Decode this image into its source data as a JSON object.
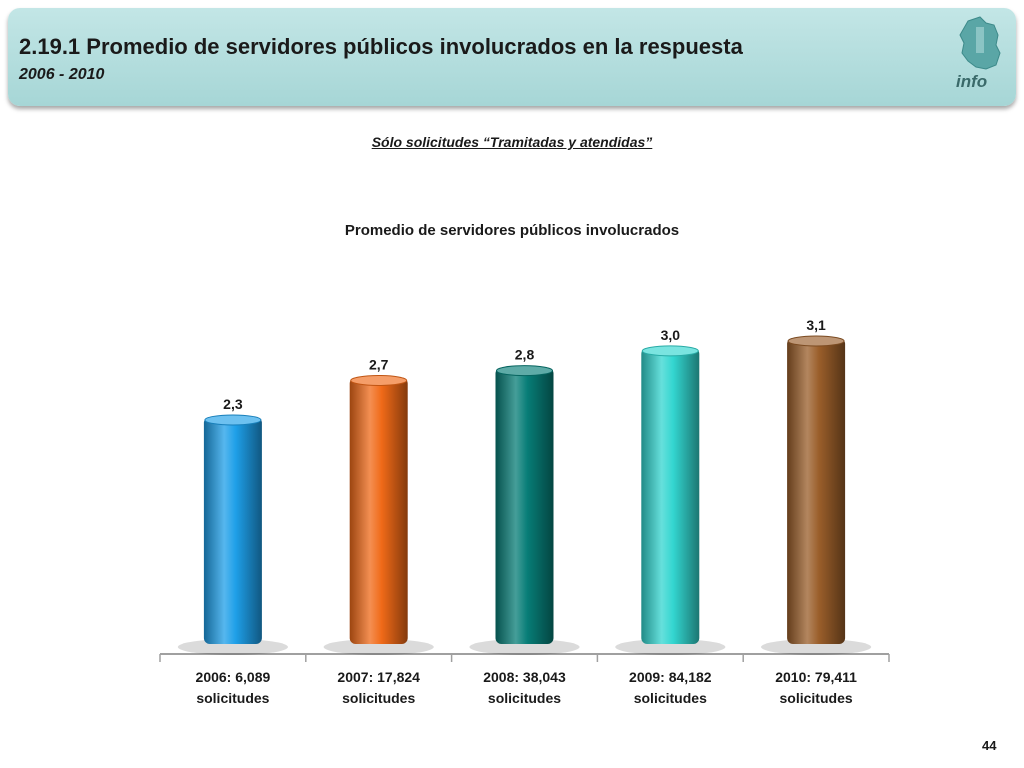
{
  "header": {
    "title": "2.19.1 Promedio de servidores públicos involucrados en la respuesta",
    "subtitle": "2006 - 2010",
    "logo_text": "info"
  },
  "filter_note": "Sólo solicitudes “Tramitadas y atendidas”",
  "page_number": "44",
  "chart_data": {
    "type": "bar",
    "title": "Promedio de servidores públicos involucrados",
    "categories": [
      "2006: 6,089 solicitudes",
      "2007: 17,824 solicitudes",
      "2008: 38,043 solicitudes",
      "2009: 84,182 solicitudes",
      "2010: 79,411 solicitudes"
    ],
    "values": [
      2.3,
      2.7,
      2.8,
      3.0,
      3.1
    ],
    "value_labels": [
      "2,3",
      "2,7",
      "2,8",
      "3,0",
      "3,1"
    ],
    "bar_colors": [
      "#1e9fe8",
      "#f06a18",
      "#077d77",
      "#33d6d0",
      "#9a5e2a"
    ],
    "xlabel": "",
    "ylabel": "",
    "ylim": [
      0,
      3.1
    ],
    "grid": false
  }
}
